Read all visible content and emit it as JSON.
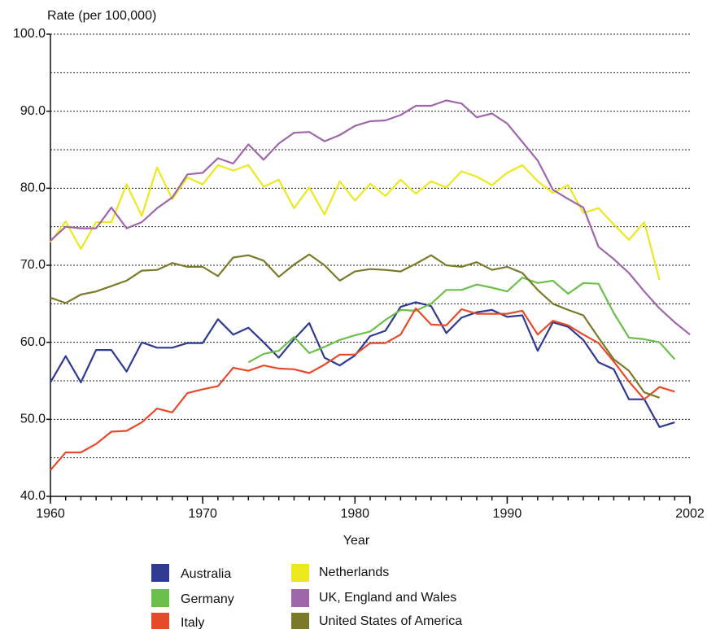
{
  "chart_data": {
    "type": "line",
    "y_axis_label": "Rate (per 100,000)",
    "x_axis_label": "Year",
    "x": [
      1960,
      1961,
      1962,
      1963,
      1964,
      1965,
      1966,
      1967,
      1968,
      1969,
      1970,
      1971,
      1972,
      1973,
      1974,
      1975,
      1976,
      1977,
      1978,
      1979,
      1980,
      1981,
      1982,
      1983,
      1984,
      1985,
      1986,
      1987,
      1988,
      1989,
      1990,
      1991,
      1992,
      1993,
      1994,
      1995,
      1996,
      1997,
      1998,
      1999,
      2000,
      2001,
      2002
    ],
    "xlim": [
      1960,
      2002
    ],
    "xticks": [
      1960,
      1970,
      1980,
      1990,
      2002
    ],
    "ylim": [
      40,
      100
    ],
    "yticks": [
      {
        "value": 40,
        "label": "40.0"
      },
      {
        "value": 50,
        "label": "50.0"
      },
      {
        "value": 60,
        "label": "60.0"
      },
      {
        "value": 70,
        "label": "70.0"
      },
      {
        "value": 80,
        "label": "80.0"
      },
      {
        "value": 90,
        "label": "90.0"
      },
      {
        "value": 100,
        "label": "100.0"
      }
    ],
    "minor_gridlines": [
      45,
      55,
      65,
      75,
      85,
      95
    ],
    "grid": true,
    "legend_position": "bottom",
    "series": [
      {
        "name": "Australia",
        "color": "#2f3a93",
        "values": [
          54.8,
          58.2,
          54.8,
          59.0,
          59.0,
          56.2,
          60.0,
          59.3,
          59.3,
          59.9,
          59.9,
          63.0,
          61.0,
          61.9,
          60.0,
          58.0,
          60.4,
          62.5,
          58.0,
          57.0,
          58.3,
          60.8,
          61.5,
          64.6,
          65.2,
          64.7,
          61.2,
          63.2,
          63.9,
          64.2,
          63.3,
          63.5,
          58.9,
          62.6,
          62.0,
          60.3,
          57.4,
          56.5,
          52.6,
          52.6,
          49.0,
          49.6,
          null
        ]
      },
      {
        "name": "Germany",
        "color": "#6cbf4a",
        "values": [
          null,
          null,
          null,
          null,
          null,
          null,
          null,
          null,
          null,
          null,
          null,
          null,
          null,
          57.4,
          58.5,
          58.9,
          60.7,
          58.6,
          59.4,
          60.3,
          60.9,
          61.4,
          62.9,
          64.2,
          64.1,
          65.0,
          66.8,
          66.8,
          67.5,
          67.1,
          66.6,
          68.4,
          67.7,
          68.0,
          66.3,
          67.7,
          67.6,
          63.8,
          60.6,
          60.4,
          60.0,
          57.8,
          null
        ]
      },
      {
        "name": "Italy",
        "color": "#e64a2b",
        "values": [
          43.4,
          45.7,
          45.7,
          46.8,
          48.4,
          48.5,
          49.6,
          51.4,
          50.9,
          53.4,
          53.9,
          54.3,
          56.7,
          56.3,
          57.0,
          56.6,
          56.5,
          56.0,
          57.1,
          58.4,
          58.4,
          59.9,
          59.9,
          61.0,
          64.4,
          62.3,
          62.2,
          64.3,
          63.7,
          63.7,
          63.7,
          64.1,
          61.0,
          62.8,
          62.2,
          61.0,
          59.9,
          57.5,
          54.9,
          52.6,
          54.2,
          53.6,
          null
        ]
      },
      {
        "name": "Netherlands",
        "color": "#ece81e",
        "values": [
          73.0,
          75.7,
          72.1,
          75.6,
          75.6,
          80.5,
          76.4,
          82.7,
          78.6,
          81.4,
          80.5,
          83.0,
          82.3,
          83.0,
          80.2,
          81.1,
          77.4,
          80.1,
          76.6,
          80.9,
          78.4,
          80.6,
          79.0,
          81.1,
          79.3,
          80.9,
          80.1,
          82.2,
          81.5,
          80.4,
          82.0,
          83.0,
          80.9,
          79.4,
          80.4,
          76.8,
          77.4,
          75.3,
          73.3,
          75.6,
          68.1,
          null,
          null
        ]
      },
      {
        "name": "UK, England and Wales",
        "color": "#a066aa",
        "values": [
          73.2,
          75.0,
          74.8,
          74.8,
          77.5,
          74.8,
          75.6,
          77.4,
          78.8,
          81.8,
          82.0,
          83.9,
          83.2,
          85.7,
          83.7,
          85.8,
          87.2,
          87.3,
          86.1,
          86.9,
          88.1,
          88.7,
          88.8,
          89.5,
          90.7,
          90.7,
          91.4,
          91.0,
          89.2,
          89.7,
          88.4,
          86.0,
          83.6,
          79.8,
          78.6,
          77.5,
          72.4,
          70.8,
          69.0,
          66.6,
          64.4,
          62.6,
          61.0
        ]
      },
      {
        "name": "United States of America",
        "color": "#7a7a2a",
        "values": [
          65.8,
          65.1,
          66.2,
          66.6,
          67.3,
          68.0,
          69.3,
          69.4,
          70.3,
          69.8,
          69.8,
          68.6,
          71.0,
          71.3,
          70.6,
          68.5,
          70.1,
          71.4,
          70.0,
          68.0,
          69.2,
          69.5,
          69.4,
          69.2,
          70.2,
          71.3,
          70.0,
          69.8,
          70.4,
          69.4,
          69.8,
          69.0,
          66.8,
          65.0,
          64.2,
          63.5,
          60.6,
          57.8,
          56.3,
          53.5,
          52.8,
          null,
          null
        ]
      }
    ]
  }
}
